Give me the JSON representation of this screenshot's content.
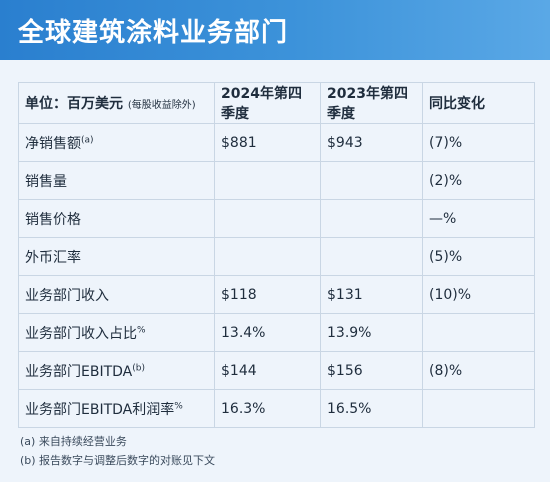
{
  "header": {
    "title": "全球建筑涂料业务部门"
  },
  "table": {
    "unit_label": "单位：百万美元",
    "unit_note": "(每股收益除外)",
    "columns": [
      "2024年第四季度",
      "2023年第四季度",
      "同比变化"
    ],
    "rows": [
      {
        "label": "净销售额",
        "sup": "(a)",
        "q4_2024": "$881",
        "q4_2023": "$943",
        "yoy": "(7)%"
      },
      {
        "label": "销售量",
        "sup": "",
        "q4_2024": "",
        "q4_2023": "",
        "yoy": "(2)%"
      },
      {
        "label": "销售价格",
        "sup": "",
        "q4_2024": "",
        "q4_2023": "",
        "yoy": "—%"
      },
      {
        "label": "外币汇率",
        "sup": "",
        "q4_2024": "",
        "q4_2023": "",
        "yoy": "(5)%"
      },
      {
        "label": "业务部门收入",
        "sup": "",
        "q4_2024": "$118",
        "q4_2023": "$131",
        "yoy": "(10)%"
      },
      {
        "label": "业务部门收入占比",
        "sup": "%",
        "q4_2024": "13.4%",
        "q4_2023": "13.9%",
        "yoy": ""
      },
      {
        "label": "业务部门EBITDA",
        "sup": "(b)",
        "q4_2024": "$144",
        "q4_2023": "$156",
        "yoy": "(8)%"
      },
      {
        "label": "业务部门EBITDA利润率",
        "sup": "%",
        "q4_2024": "16.3%",
        "q4_2023": "16.5%",
        "yoy": ""
      }
    ]
  },
  "notes": [
    "(a) 来自持续经营业务",
    "(b) 报告数字与调整后数字的对账见下文"
  ]
}
